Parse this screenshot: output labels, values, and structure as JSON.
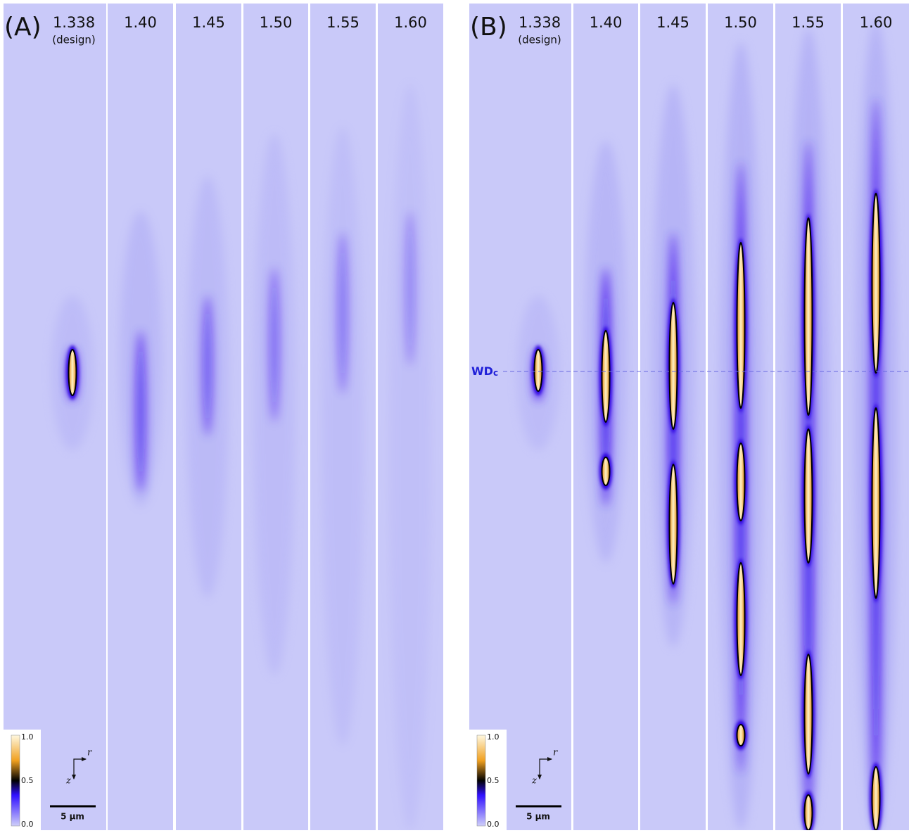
{
  "panels": [
    {
      "label": "(A)",
      "columns": [
        {
          "label": "1.338",
          "note": "(design)"
        },
        {
          "label": "1.40"
        },
        {
          "label": "1.45"
        },
        {
          "label": "1.50"
        },
        {
          "label": "1.55"
        },
        {
          "label": "1.60"
        }
      ],
      "colorbar": {
        "ticks": [
          "1.0",
          "0.5",
          "0.0"
        ]
      },
      "axes": {
        "r": "r",
        "z": "z"
      },
      "scale_bar": "5 µm"
    },
    {
      "label": "(B)",
      "columns": [
        {
          "label": "1.338",
          "note": "(design)"
        },
        {
          "label": "1.40"
        },
        {
          "label": "1.45"
        },
        {
          "label": "1.50"
        },
        {
          "label": "1.55"
        },
        {
          "label": "1.60"
        }
      ],
      "colorbar": {
        "ticks": [
          "1.0",
          "0.5",
          "0.0"
        ]
      },
      "axes": {
        "r": "r",
        "z": "z"
      },
      "scale_bar": "5 µm",
      "marker": {
        "label": "WD",
        "subscript": "c"
      }
    }
  ]
}
